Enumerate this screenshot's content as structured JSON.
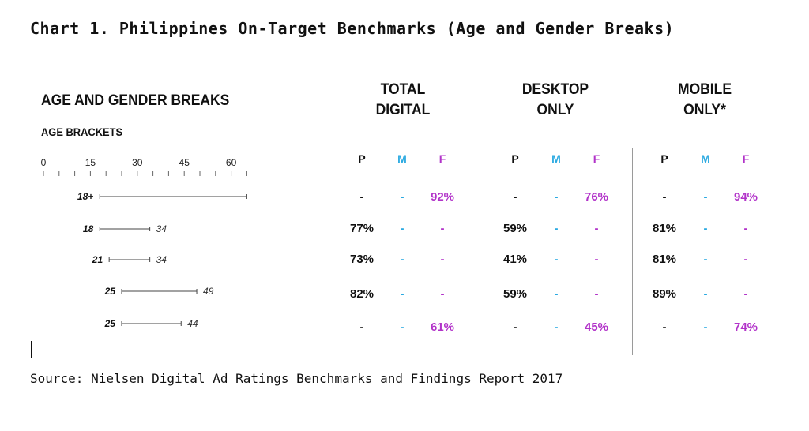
{
  "title": "Chart 1. Philippines On-Target Benchmarks (Age and Gender Breaks)",
  "source": "Source: Nielsen Digital Ad Ratings Benchmarks and Findings Report 2017",
  "panel_heading": "AGE AND GENDER BREAKS",
  "age_brackets_label": "AGE BRACKETS",
  "columns": [
    {
      "line1": "TOTAL",
      "line2": "DIGITAL"
    },
    {
      "line1": "DESKTOP",
      "line2": "ONLY"
    },
    {
      "line1": "MOBILE",
      "line2": "ONLY*"
    }
  ],
  "sub_headers": [
    "P",
    "M",
    "F"
  ],
  "colors": {
    "P": "#111111",
    "M": "#29a9e1",
    "F": "#b233c9"
  },
  "chart_data": {
    "type": "table",
    "axis_ticks": [
      0,
      15,
      30,
      45,
      60
    ],
    "axis_range": [
      0,
      65
    ],
    "rows": [
      {
        "label": "18+",
        "start": 18,
        "end": null,
        "end_label": "",
        "values": [
          [
            "-",
            "-",
            "92%"
          ],
          [
            "-",
            "-",
            "76%"
          ],
          [
            "-",
            "-",
            "94%"
          ]
        ]
      },
      {
        "label": "18",
        "start": 18,
        "end": 34,
        "end_label": "34",
        "values": [
          [
            "77%",
            "-",
            "-"
          ],
          [
            "59%",
            "-",
            "-"
          ],
          [
            "81%",
            "-",
            "-"
          ]
        ]
      },
      {
        "label": "21",
        "start": 21,
        "end": 34,
        "end_label": "34",
        "values": [
          [
            "73%",
            "-",
            "-"
          ],
          [
            "41%",
            "-",
            "-"
          ],
          [
            "81%",
            "-",
            "-"
          ]
        ]
      },
      {
        "label": "25",
        "start": 25,
        "end": 49,
        "end_label": "49",
        "values": [
          [
            "82%",
            "-",
            "-"
          ],
          [
            "59%",
            "-",
            "-"
          ],
          [
            "89%",
            "-",
            "-"
          ]
        ]
      },
      {
        "label": "25",
        "start": 25,
        "end": 44,
        "end_label": "44",
        "values": [
          [
            "-",
            "-",
            "61%"
          ],
          [
            "-",
            "-",
            "45%"
          ],
          [
            "-",
            "-",
            "74%"
          ]
        ]
      }
    ]
  }
}
